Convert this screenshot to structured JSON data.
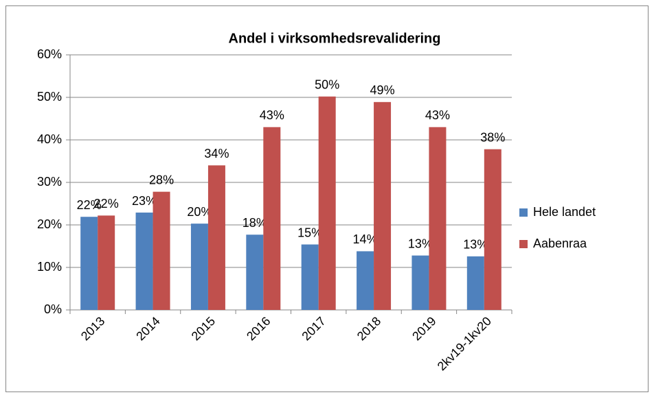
{
  "chart_data": {
    "type": "bar",
    "title": "Andel i virksomhedsrevalidering",
    "categories": [
      "2013",
      "2014",
      "2015",
      "2016",
      "2017",
      "2018",
      "2019",
      "2kv19-1kv20"
    ],
    "series": [
      {
        "name": "Hele landet",
        "color": "#4f81bd",
        "values": [
          21.9,
          22.9,
          20.3,
          17.7,
          15.4,
          13.8,
          12.8,
          12.6
        ],
        "value_labels": [
          "22%",
          "23%",
          "20%",
          "18%",
          "15%",
          "14%",
          "13%",
          "13%"
        ]
      },
      {
        "name": "Aabenraa",
        "color": "#c0504d",
        "values": [
          22.2,
          27.8,
          34.0,
          43.0,
          50.2,
          48.9,
          43.0,
          37.8
        ],
        "value_labels": [
          "22%",
          "28%",
          "34%",
          "43%",
          "50%",
          "49%",
          "43%",
          "38%"
        ]
      }
    ],
    "ylim": [
      0,
      60
    ],
    "yticks": [
      {
        "value": 0,
        "label": "0%"
      },
      {
        "value": 10,
        "label": "10%"
      },
      {
        "value": 20,
        "label": "20%"
      },
      {
        "value": 30,
        "label": "30%"
      },
      {
        "value": 40,
        "label": "40%"
      },
      {
        "value": 50,
        "label": "50%"
      },
      {
        "value": 60,
        "label": "60%"
      }
    ],
    "grid": true,
    "legend": "right"
  }
}
